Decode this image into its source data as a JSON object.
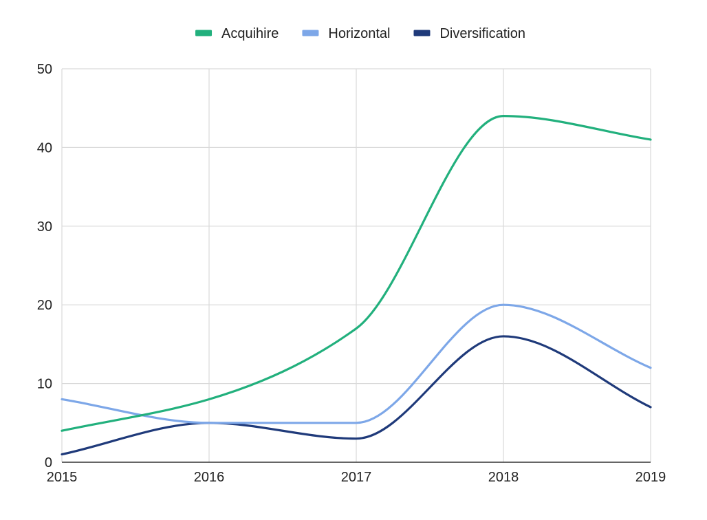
{
  "chart_data": {
    "type": "line",
    "title": "",
    "xlabel": "",
    "ylabel": "",
    "x": [
      2015,
      2016,
      2017,
      2018,
      2019
    ],
    "x_tick_labels": [
      "2015",
      "2016",
      "2017",
      "2018",
      "2019"
    ],
    "y_tick_labels": [
      "0",
      "10",
      "20",
      "30",
      "40",
      "50"
    ],
    "y_ticks": [
      0,
      10,
      20,
      30,
      40,
      50
    ],
    "xlim": [
      2015,
      2019
    ],
    "ylim": [
      0,
      50
    ],
    "grid": true,
    "legend_position": "top",
    "smooth": true,
    "series": [
      {
        "name": "Acquihire",
        "color": "#22b07d",
        "values": [
          4,
          8,
          17,
          44,
          41
        ]
      },
      {
        "name": "Horizontal",
        "color": "#7da7e8",
        "values": [
          8,
          5,
          5,
          20,
          12
        ]
      },
      {
        "name": "Diversification",
        "color": "#1f3a7a",
        "values": [
          1,
          5,
          3,
          16,
          7
        ]
      }
    ]
  }
}
